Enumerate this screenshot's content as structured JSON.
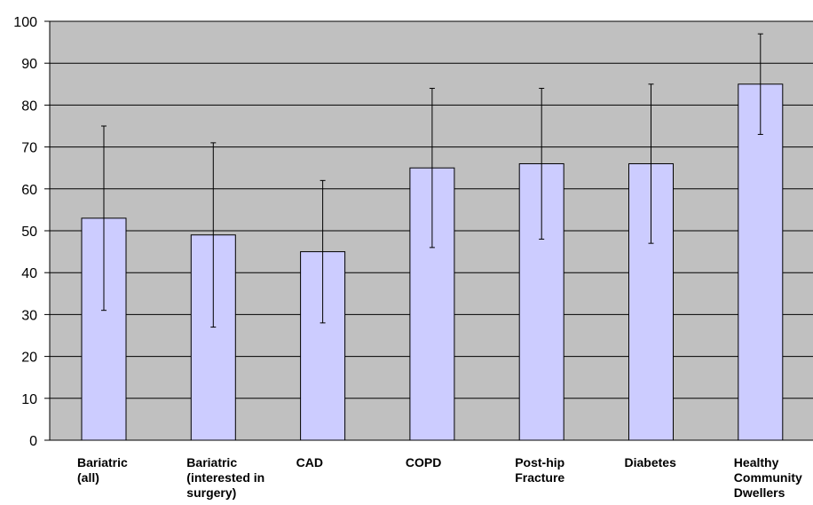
{
  "chart_data": {
    "type": "bar",
    "title": "",
    "xlabel": "",
    "ylabel": "",
    "ylim": [
      0,
      100
    ],
    "yticks": [
      0,
      10,
      20,
      30,
      40,
      50,
      60,
      70,
      80,
      90,
      100
    ],
    "grid": "horizontal",
    "legend": "none",
    "categories": [
      [
        "Bariatric",
        "(all)"
      ],
      [
        "Bariatric",
        "(interested in",
        "surgery)"
      ],
      [
        "CAD"
      ],
      [
        "COPD"
      ],
      [
        "Post-hip",
        "Fracture"
      ],
      [
        "Diabetes"
      ],
      [
        "Healthy",
        "Community",
        "Dwellers"
      ]
    ],
    "values": [
      53,
      49,
      45,
      65,
      66,
      66,
      85
    ],
    "error_low": [
      31,
      27,
      28,
      46,
      48,
      47,
      73
    ],
    "error_high": [
      75,
      71,
      62,
      84,
      84,
      85,
      97
    ],
    "colors": {
      "plot_background": "#c0c0c0",
      "bar_fill": "#ccccff",
      "bar_stroke": "#000000",
      "gridline": "#000000"
    }
  }
}
